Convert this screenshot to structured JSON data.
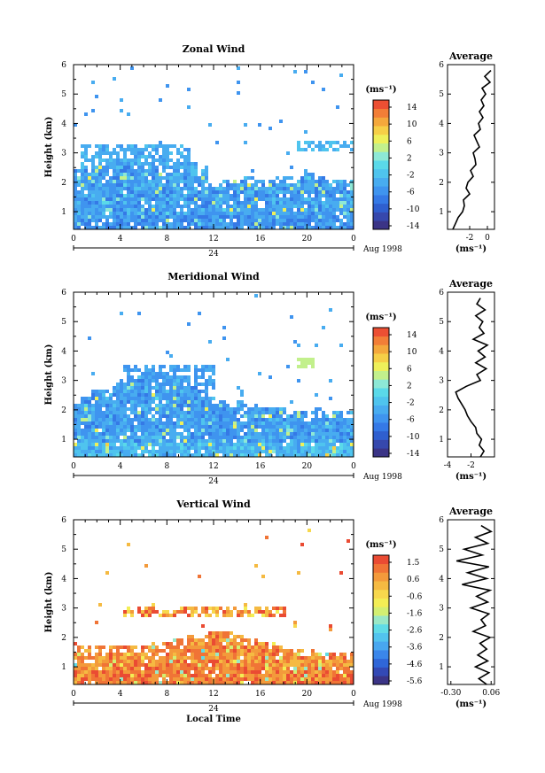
{
  "figure": {
    "x_axis_label": "Local Time",
    "date_label": "Aug 1998",
    "day_marker": "24",
    "y_axis_label": "Height (km)"
  },
  "colors": {
    "zonal_meridional_scale": [
      "#3b3486",
      "#3648ad",
      "#2f5fcf",
      "#3579e6",
      "#3f94ef",
      "#48acf0",
      "#4fc4ee",
      "#5ad9e9",
      "#8de8d6",
      "#c2f08c",
      "#eef05a",
      "#f6cf47",
      "#f4a83c",
      "#f27e37",
      "#ec4f33"
    ],
    "vertical_scale": [
      "#3b3486",
      "#3349b5",
      "#2f66d8",
      "#3a86ea",
      "#48a7ef",
      "#52c4ee",
      "#60dce6",
      "#9ae8c6",
      "#d3ef72",
      "#f3ee55",
      "#f7d84d",
      "#f5ba42",
      "#f39a3b",
      "#f07436",
      "#ea4b33"
    ]
  },
  "chart_data": [
    {
      "type": "heatmap",
      "title": "Zonal Wind",
      "ylabel": "Height (km)",
      "x_ticks": [
        "0",
        "4",
        "8",
        "12",
        "16",
        "20",
        "0"
      ],
      "y_ticks": [
        "1",
        "2",
        "3",
        "4",
        "5",
        "6"
      ],
      "xlim": [
        0,
        24
      ],
      "ylim": [
        0.4,
        6
      ],
      "colorbar": {
        "unit": "(ms⁻¹)",
        "tick_labels": [
          "14",
          "10",
          "6",
          "2",
          "-2",
          "-6",
          "-10",
          "-14"
        ],
        "range": [
          -15,
          15
        ]
      },
      "field": {
        "base_value": -5,
        "low_level_value": -6,
        "top_km": [
          2.5,
          2.6,
          2.8,
          2.9,
          2.9,
          2.8,
          2.7,
          2.6,
          2.6,
          2.7,
          2.8,
          2.6,
          2.2,
          2.1,
          2.2,
          2.3,
          2.2,
          2.2,
          2.3,
          2.3,
          2.5,
          2.3,
          2.2,
          2.2,
          2.3
        ],
        "upper_patch": {
          "x": [
            0.5,
            10
          ],
          "y": [
            2.6,
            3.4
          ],
          "value": -4
        },
        "isolated_top": {
          "x": [
            19,
            24
          ],
          "y": [
            3.1,
            3.5
          ],
          "value": -3
        }
      },
      "profile": {
        "title": "Average",
        "xlabel": "(ms⁻¹)",
        "x_ticks": [
          "-2",
          "0"
        ],
        "xlim": [
          -4.5,
          0.8
        ],
        "height_km": [
          0.4,
          0.6,
          0.8,
          1.0,
          1.2,
          1.4,
          1.6,
          1.8,
          2.0,
          2.2,
          2.4,
          2.6,
          2.8,
          3.0,
          3.2,
          3.4,
          3.6,
          3.8,
          4.0,
          4.2,
          4.4,
          4.6,
          4.8,
          5.0,
          5.2,
          5.4,
          5.6,
          5.8
        ],
        "value_ms": [
          -3.9,
          -3.6,
          -3.3,
          -2.8,
          -2.6,
          -2.7,
          -2.0,
          -2.4,
          -2.2,
          -1.6,
          -1.9,
          -1.3,
          -1.4,
          -1.6,
          -0.9,
          -1.2,
          -1.5,
          -0.8,
          -1.0,
          -0.5,
          -0.9,
          -0.4,
          -0.7,
          -0.2,
          -0.6,
          0.3,
          -0.3,
          0.4
        ]
      }
    },
    {
      "type": "heatmap",
      "title": "Meridional Wind",
      "ylabel": "Height (km)",
      "x_ticks": [
        "0",
        "4",
        "8",
        "12",
        "16",
        "20",
        "0"
      ],
      "y_ticks": [
        "1",
        "2",
        "3",
        "4",
        "5",
        "6"
      ],
      "xlim": [
        0,
        24
      ],
      "ylim": [
        0.4,
        6
      ],
      "colorbar": {
        "unit": "(ms⁻¹)",
        "tick_labels": [
          "14",
          "10",
          "6",
          "2",
          "-2",
          "-6",
          "-10",
          "-14"
        ],
        "range": [
          -15,
          15
        ]
      },
      "field": {
        "base_value": -5,
        "low_level_value": -3,
        "top_km": [
          2.3,
          2.5,
          2.7,
          2.9,
          3.1,
          3.2,
          3.1,
          3.0,
          3.0,
          3.1,
          2.9,
          2.7,
          2.5,
          2.4,
          2.4,
          2.3,
          2.2,
          2.1,
          2.1,
          2.0,
          2.0,
          2.1,
          2.0,
          2.0,
          2.0
        ],
        "upper_patch": {
          "x": [
            4,
            12
          ],
          "y": [
            2.8,
            3.6
          ],
          "value": -5
        },
        "isolated_top": {
          "x": [
            19,
            20.5
          ],
          "y": [
            3.5,
            3.8
          ],
          "value": 4
        }
      },
      "profile": {
        "title": "Average",
        "xlabel": "(ms⁻¹)",
        "x_ticks": [
          "-4",
          "-2"
        ],
        "xlim": [
          -4,
          0
        ],
        "height_km": [
          0.4,
          0.6,
          0.8,
          1.0,
          1.2,
          1.4,
          1.6,
          1.8,
          2.0,
          2.2,
          2.4,
          2.6,
          2.8,
          3.0,
          3.2,
          3.4,
          3.6,
          3.8,
          4.0,
          4.2,
          4.4,
          4.6,
          4.8,
          5.0,
          5.2,
          5.4,
          5.6,
          5.8
        ],
        "value_ms": [
          -1.2,
          -0.9,
          -1.3,
          -1.1,
          -1.5,
          -1.6,
          -2.0,
          -2.3,
          -2.5,
          -2.8,
          -3.1,
          -3.3,
          -2.4,
          -1.2,
          -1.5,
          -0.7,
          -1.6,
          -0.8,
          -1.4,
          -0.6,
          -1.8,
          -0.9,
          -1.3,
          -1.0,
          -1.6,
          -0.8,
          -1.5,
          -1.2
        ]
      }
    },
    {
      "type": "heatmap",
      "title": "Vertical Wind",
      "ylabel": "Height (km)",
      "xlabel": "Local Time",
      "x_ticks": [
        "0",
        "4",
        "8",
        "12",
        "16",
        "20",
        "0"
      ],
      "y_ticks": [
        "1",
        "2",
        "3",
        "4",
        "5",
        "6"
      ],
      "xlim": [
        0,
        24
      ],
      "ylim": [
        0.4,
        6
      ],
      "colorbar": {
        "unit": "(ms⁻¹)",
        "tick_labels": [
          "1.5",
          "0.6",
          "-0.6",
          "-1.6",
          "-2.6",
          "-3.6",
          "-4.6",
          "-5.6"
        ],
        "range": [
          -6,
          2
        ]
      },
      "field": {
        "base_value": 0.9,
        "low_level_value": 1.1,
        "top_km": [
          1.8,
          1.8,
          1.8,
          1.8,
          1.8,
          1.8,
          1.8,
          1.9,
          1.9,
          2.0,
          2.1,
          2.2,
          2.3,
          2.3,
          2.2,
          2.0,
          1.9,
          1.9,
          1.8,
          1.7,
          1.7,
          1.6,
          1.6,
          1.6,
          1.6
        ],
        "upper_patch": {
          "x": [
            4,
            18
          ],
          "y": [
            2.8,
            3.1
          ],
          "value": 0.7
        },
        "isolated_top": {
          "x": [
            18.5,
            19
          ],
          "y": [
            2.4,
            2.6
          ],
          "value": 0.5
        }
      },
      "profile": {
        "title": "Average",
        "xlabel": "(ms⁻¹)",
        "x_ticks": [
          "-0.30",
          "0.06"
        ],
        "xlim": [
          -0.33,
          0.09
        ],
        "height_km": [
          0.4,
          0.6,
          0.8,
          1.0,
          1.2,
          1.4,
          1.6,
          1.8,
          2.0,
          2.2,
          2.4,
          2.6,
          2.8,
          3.0,
          3.2,
          3.4,
          3.6,
          3.8,
          4.0,
          4.2,
          4.4,
          4.6,
          4.8,
          5.0,
          5.2,
          5.4,
          5.6,
          5.8
        ],
        "value_ms": [
          0.02,
          -0.05,
          0.04,
          -0.08,
          0.03,
          -0.06,
          0.02,
          -0.04,
          0.05,
          -0.1,
          0.01,
          -0.03,
          0.04,
          -0.12,
          0.03,
          -0.07,
          0.05,
          -0.2,
          0.02,
          -0.15,
          0.04,
          -0.25,
          -0.02,
          -0.18,
          0.03,
          -0.08,
          0.06,
          -0.03
        ]
      }
    }
  ]
}
